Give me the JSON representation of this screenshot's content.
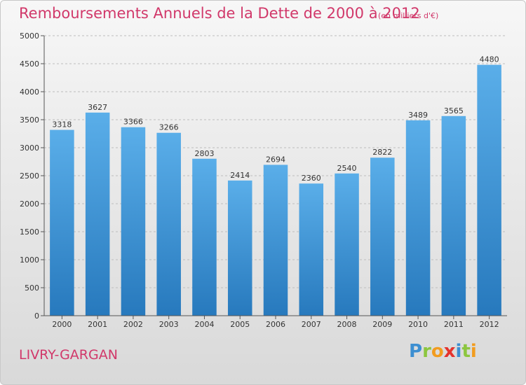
{
  "header": {
    "title": "Remboursements Annuels de la Dette de 2000 à 2012",
    "subtitle": "(en milliers d'€)"
  },
  "footer": {
    "city": "LIVRY-GARGAN",
    "logo_letters": [
      "P",
      "r",
      "o",
      "x",
      "i",
      "t",
      "i"
    ],
    "logo_colors": [
      "#3d8fd1",
      "#8cc63f",
      "#f29c1f",
      "#e4332d",
      "#3d8fd1",
      "#8cc63f",
      "#f29c1f"
    ]
  },
  "colors": {
    "accent": "#d1386a",
    "bar_top": "#5aaee9",
    "bar_bottom": "#2779bd"
  },
  "chart_data": {
    "type": "bar",
    "title": "Remboursements Annuels de la Dette de 2000 à 2012",
    "subtitle": "(en milliers d'€)",
    "categories": [
      "2000",
      "2001",
      "2002",
      "2003",
      "2004",
      "2005",
      "2006",
      "2007",
      "2008",
      "2009",
      "2010",
      "2011",
      "2012"
    ],
    "values": [
      3318,
      3627,
      3366,
      3266,
      2803,
      2414,
      2694,
      2360,
      2540,
      2822,
      3489,
      3565,
      4480
    ],
    "ylim": [
      0,
      5000
    ],
    "yticks": [
      0,
      500,
      1000,
      1500,
      2000,
      2500,
      3000,
      3500,
      4000,
      4500,
      5000
    ],
    "grid": true,
    "legend": "none",
    "data_labels": true
  }
}
